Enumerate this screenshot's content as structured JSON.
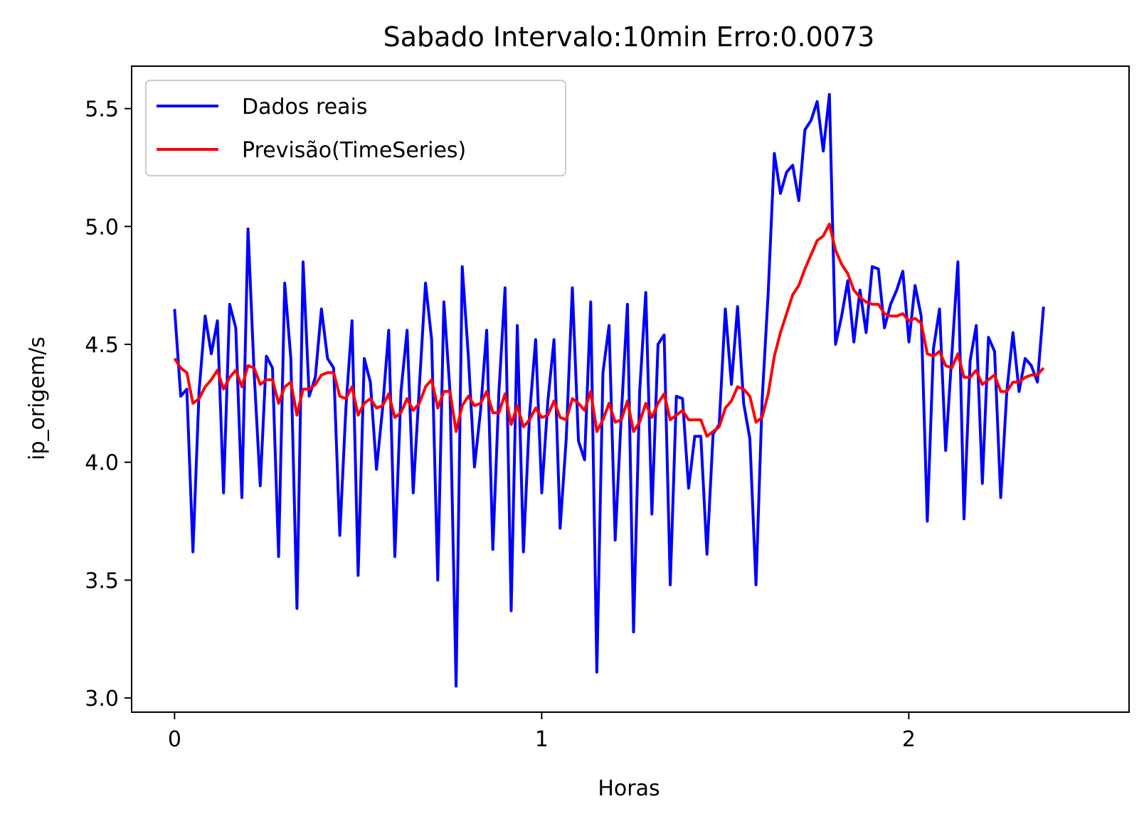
{
  "chart_data": {
    "type": "line",
    "title": "Sabado Intervalo:10min Erro:0.0073",
    "xlabel": "Horas",
    "ylabel": "ip_origem/s",
    "xlim": [
      -0.117,
      2.6
    ],
    "ylim": [
      2.94,
      5.68
    ],
    "xticks": [
      0,
      1,
      2
    ],
    "xtick_labels": [
      "0",
      "1",
      "2"
    ],
    "yticks": [
      3.0,
      3.5,
      4.0,
      4.5,
      5.0,
      5.5
    ],
    "ytick_labels": [
      "3.0",
      "3.5",
      "4.0",
      "4.5",
      "5.0",
      "5.5"
    ],
    "grid": false,
    "legend": "upper left",
    "x_start": 0,
    "x_step": 0.01667,
    "series": [
      {
        "name": "Dados reais",
        "color": "#0000ff",
        "values": [
          4.65,
          4.28,
          4.31,
          3.62,
          4.3,
          4.62,
          4.46,
          4.6,
          3.87,
          4.67,
          4.57,
          3.85,
          4.99,
          4.38,
          3.9,
          4.45,
          4.4,
          3.6,
          4.76,
          4.44,
          3.38,
          4.85,
          4.28,
          4.36,
          4.65,
          4.44,
          4.4,
          3.69,
          4.23,
          4.6,
          3.52,
          4.44,
          4.34,
          3.97,
          4.23,
          4.56,
          3.6,
          4.3,
          4.56,
          3.87,
          4.32,
          4.76,
          4.52,
          3.5,
          4.68,
          4.3,
          3.05,
          4.83,
          4.45,
          3.98,
          4.22,
          4.56,
          3.63,
          4.3,
          4.74,
          3.37,
          4.58,
          3.62,
          4.2,
          4.52,
          3.87,
          4.26,
          4.52,
          3.72,
          4.1,
          4.74,
          4.09,
          4.01,
          4.68,
          3.11,
          4.38,
          4.58,
          3.67,
          4.2,
          4.67,
          3.28,
          4.3,
          4.72,
          3.78,
          4.5,
          4.54,
          3.48,
          4.28,
          4.27,
          3.89,
          4.11,
          4.11,
          3.61,
          4.12,
          4.16,
          4.65,
          4.33,
          4.66,
          4.25,
          4.1,
          3.48,
          4.26,
          4.72,
          5.31,
          5.14,
          5.23,
          5.26,
          5.11,
          5.41,
          5.45,
          5.53,
          5.32,
          5.56,
          4.5,
          4.62,
          4.77,
          4.51,
          4.73,
          4.55,
          4.83,
          4.82,
          4.57,
          4.67,
          4.73,
          4.81,
          4.51,
          4.75,
          4.62,
          3.75,
          4.48,
          4.65,
          4.05,
          4.45,
          4.85,
          3.76,
          4.43,
          4.58,
          3.91,
          4.53,
          4.47,
          3.85,
          4.3,
          4.55,
          4.3,
          4.44,
          4.41,
          4.34,
          4.66
        ]
      },
      {
        "name": "Previsão(TimeSeries)",
        "color": "#ff0000",
        "values": [
          4.44,
          4.4,
          4.38,
          4.25,
          4.27,
          4.32,
          4.35,
          4.39,
          4.31,
          4.36,
          4.39,
          4.32,
          4.41,
          4.4,
          4.33,
          4.35,
          4.35,
          4.25,
          4.32,
          4.34,
          4.2,
          4.31,
          4.31,
          4.33,
          4.37,
          4.38,
          4.38,
          4.28,
          4.27,
          4.32,
          4.2,
          4.25,
          4.27,
          4.23,
          4.24,
          4.29,
          4.19,
          4.21,
          4.27,
          4.22,
          4.25,
          4.32,
          4.35,
          4.23,
          4.3,
          4.3,
          4.13,
          4.24,
          4.28,
          4.24,
          4.25,
          4.3,
          4.21,
          4.21,
          4.29,
          4.16,
          4.24,
          4.15,
          4.18,
          4.23,
          4.19,
          4.2,
          4.26,
          4.19,
          4.18,
          4.27,
          4.25,
          4.22,
          4.3,
          4.13,
          4.18,
          4.25,
          4.17,
          4.18,
          4.26,
          4.13,
          4.17,
          4.25,
          4.19,
          4.25,
          4.29,
          4.18,
          4.2,
          4.22,
          4.18,
          4.18,
          4.18,
          4.11,
          4.13,
          4.15,
          4.23,
          4.26,
          4.32,
          4.31,
          4.28,
          4.17,
          4.19,
          4.29,
          4.45,
          4.55,
          4.63,
          4.71,
          4.75,
          4.82,
          4.88,
          4.94,
          4.96,
          5.01,
          4.9,
          4.84,
          4.8,
          4.73,
          4.7,
          4.68,
          4.67,
          4.67,
          4.63,
          4.62,
          4.62,
          4.63,
          4.6,
          4.61,
          4.59,
          4.46,
          4.45,
          4.47,
          4.41,
          4.4,
          4.46,
          4.36,
          4.36,
          4.39,
          4.33,
          4.35,
          4.37,
          4.3,
          4.3,
          4.34,
          4.34,
          4.36,
          4.37,
          4.37,
          4.4
        ]
      }
    ]
  }
}
